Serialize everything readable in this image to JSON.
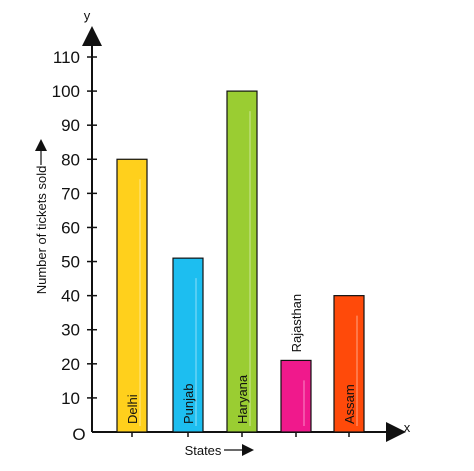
{
  "chart_data": {
    "type": "bar",
    "categories": [
      "Delhi",
      "Punjab",
      "Haryana",
      "Rajasthan",
      "Assam"
    ],
    "values": [
      80,
      51,
      100,
      21,
      40
    ],
    "colors": [
      "#FFD01C",
      "#1DBEF0",
      "#9ACD32",
      "#F0198C",
      "#FF4A0A"
    ],
    "xlabel": "States",
    "ylabel": "Number of tickets sold",
    "x_axis_letter": "x",
    "y_axis_letter": "y",
    "origin_label": "O",
    "ylim": [
      0,
      110
    ],
    "yticks": [
      10,
      20,
      30,
      40,
      50,
      60,
      70,
      80,
      90,
      100,
      110
    ],
    "grid": false,
    "legend": "none"
  }
}
